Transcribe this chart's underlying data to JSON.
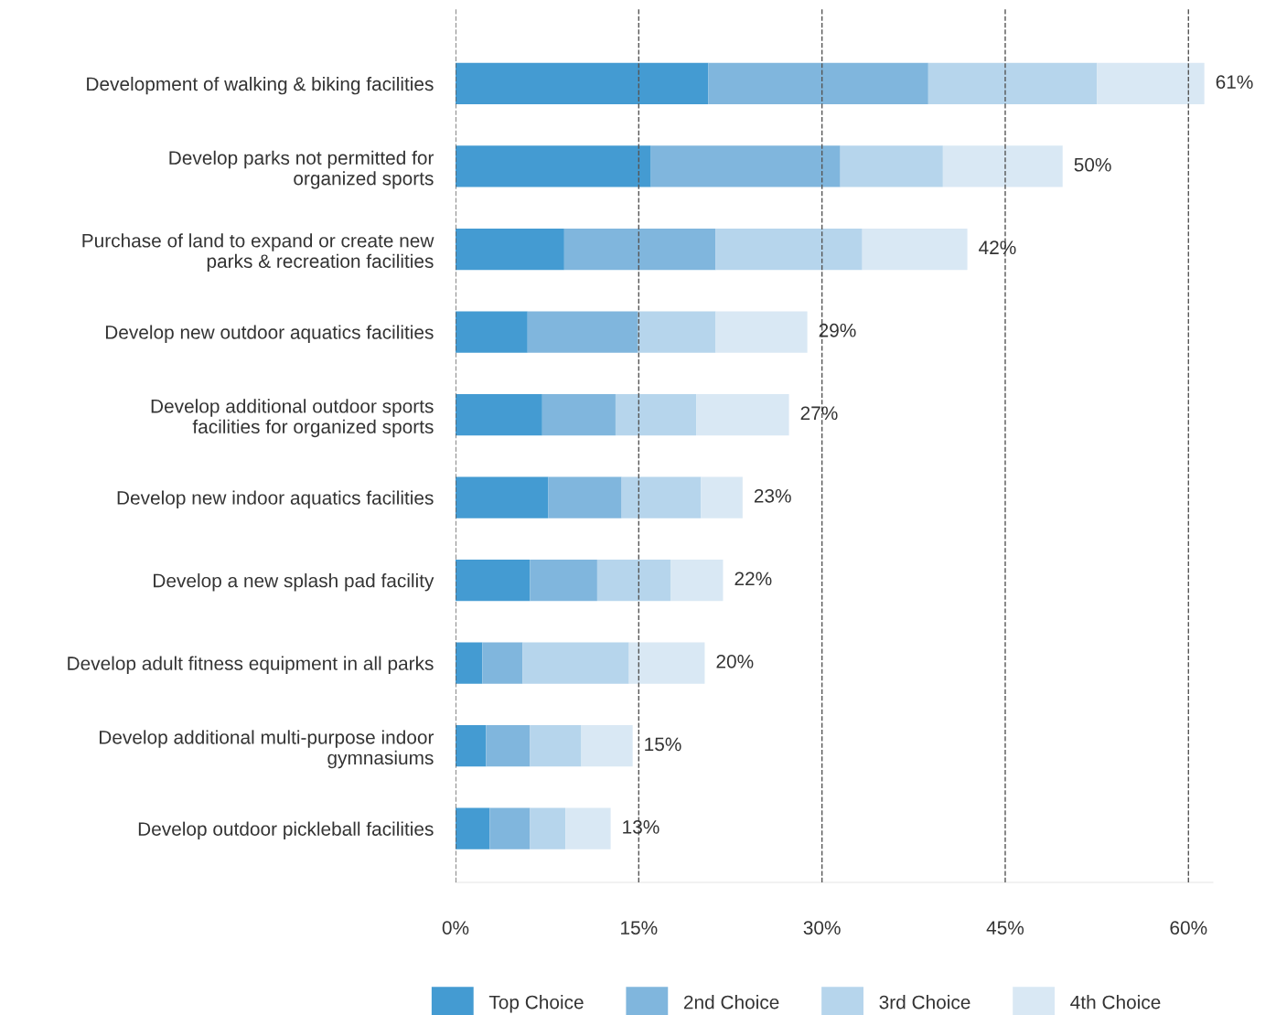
{
  "chart_data": {
    "type": "bar",
    "orientation": "horizontal",
    "stacked": true,
    "categories": [
      "Development of walking & biking facilities",
      "Develop parks not permitted for\norganized sports",
      "Purchase of land to expand or create new\nparks & recreation facilities",
      "Develop new outdoor aquatics facilities",
      "Develop additional outdoor sports\nfacilities for organized sports",
      "Develop new indoor aquatics facilities",
      "Develop a new splash pad facility",
      "Develop adult fitness equipment in all parks",
      "Develop additional multi-purpose indoor\ngymnasiums",
      "Develop outdoor pickleball facilities"
    ],
    "series": [
      {
        "name": "Top Choice",
        "color": "#449bd2",
        "values": [
          20.7,
          16.0,
          8.9,
          5.9,
          7.1,
          7.6,
          6.1,
          2.2,
          2.5,
          2.8
        ]
      },
      {
        "name": "2nd Choice",
        "color": "#80b6dd",
        "values": [
          18.0,
          15.5,
          12.4,
          9.0,
          6.0,
          6.0,
          5.5,
          3.3,
          3.6,
          3.3
        ]
      },
      {
        "name": "3rd Choice",
        "color": "#b6d5ec",
        "values": [
          13.8,
          8.4,
          12.0,
          6.4,
          6.6,
          6.5,
          6.0,
          8.7,
          4.2,
          2.9
        ]
      },
      {
        "name": "4th Choice",
        "color": "#d9e8f4",
        "values": [
          8.8,
          9.8,
          8.6,
          7.5,
          7.6,
          3.4,
          4.3,
          6.2,
          4.2,
          3.7
        ]
      }
    ],
    "totals": [
      "61%",
      "50%",
      "42%",
      "29%",
      "27%",
      "23%",
      "22%",
      "20%",
      "15%",
      "13%"
    ],
    "xlim": [
      0,
      62
    ],
    "xticks": [
      {
        "value": 0,
        "label": "0%"
      },
      {
        "value": 15,
        "label": "15%"
      },
      {
        "value": 30,
        "label": "30%"
      },
      {
        "value": 45,
        "label": "45%"
      },
      {
        "value": 60,
        "label": "60%"
      }
    ],
    "grid": "x",
    "line_style": "dashed",
    "legend": "bottom"
  }
}
